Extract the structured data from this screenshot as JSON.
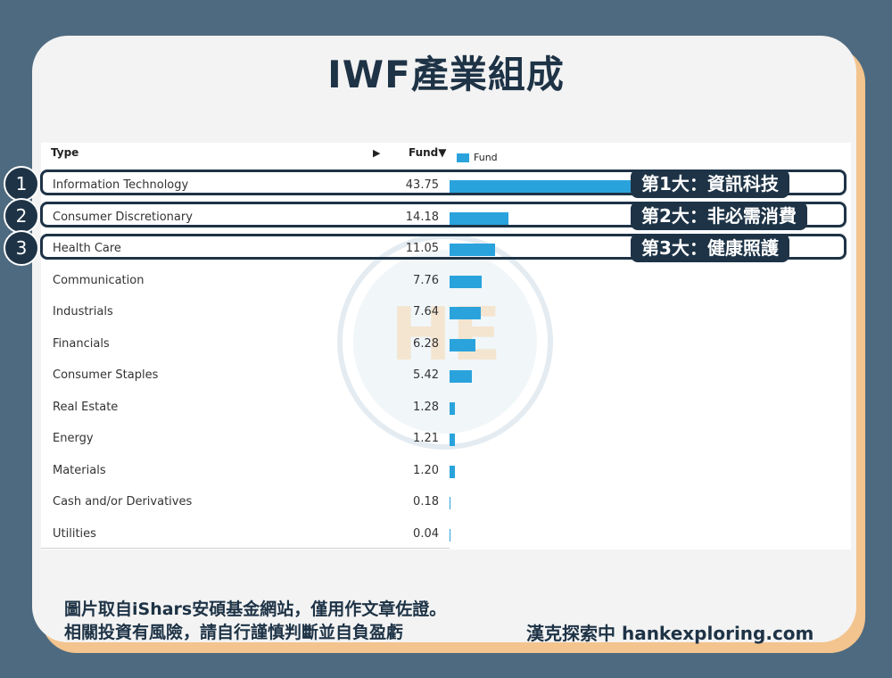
{
  "page": {
    "title": "IWF產業組成",
    "footer_line1": "圖片取自iShars安碩基金網站，僅用作文章佐證。",
    "footer_line2": "相關投資有風險，請自行謹慎判斷並自負盈虧",
    "brand": "漢克探索中 hankexploring.com",
    "watermark": "HE"
  },
  "colors": {
    "background": "#4e6a80",
    "card": "#f3f3f3",
    "card_shadow": "#f3c48e",
    "bar": "#2aa3dd",
    "dark": "#1e3346"
  },
  "table": {
    "col_type": "Type",
    "sort_arrow": "▶",
    "col_fund": "Fund▼",
    "legend": "Fund"
  },
  "highlights": [
    {
      "rank": "1",
      "text": "第1大：資訊科技"
    },
    {
      "rank": "2",
      "text": "第2大：非必需消費"
    },
    {
      "rank": "3",
      "text": "第3大：健康照護"
    }
  ],
  "chart_data": {
    "type": "bar",
    "orientation": "horizontal",
    "categories": [
      "Information Technology",
      "Consumer Discretionary",
      "Health Care",
      "Communication",
      "Industrials",
      "Financials",
      "Consumer Staples",
      "Real Estate",
      "Energy",
      "Materials",
      "Cash and/or Derivatives",
      "Utilities"
    ],
    "values": [
      43.75,
      14.18,
      11.05,
      7.76,
      7.64,
      6.28,
      5.42,
      1.28,
      1.21,
      1.2,
      0.18,
      0.04
    ],
    "labels": [
      "43.75",
      "14.18",
      "11.05",
      "7.76",
      "7.64",
      "6.28",
      "5.42",
      "1.28",
      "1.21",
      "1.20",
      "0.18",
      "0.04"
    ],
    "legend": "Fund",
    "legend_position": "top-left",
    "grid": false
  }
}
